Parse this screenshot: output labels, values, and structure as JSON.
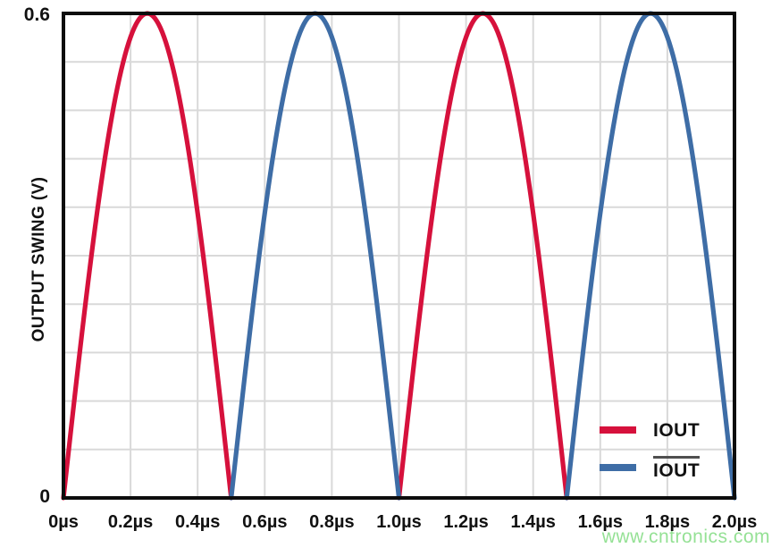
{
  "figure": {
    "watermark": "www.cntronics.com",
    "watermark_color": "#8ade8a",
    "background": "#ffffff"
  },
  "chart_data": {
    "type": "line",
    "title": "",
    "xlabel": "",
    "ylabel": "OUTPUT SWING (V)",
    "x_unit": "µs",
    "xlim": [
      0,
      2.0
    ],
    "ylim": [
      0,
      0.6
    ],
    "x_ticks": [
      0,
      0.2,
      0.4,
      0.6,
      0.8,
      1.0,
      1.2,
      1.4,
      1.6,
      1.8,
      2.0
    ],
    "x_tick_labels": [
      "0µs",
      "0.2µs",
      "0.4µs",
      "0.6µs",
      "0.8µs",
      "1.0µs",
      "1.2µs",
      "1.4µs",
      "1.6µs",
      "1.8µs",
      "2.0µs"
    ],
    "y_ticks": [
      {
        "value": 0.6,
        "label": "0.6"
      },
      {
        "value": 0,
        "label": "0"
      }
    ],
    "grid": {
      "show": true,
      "x_step_us": 0.2,
      "y_divisions": 10,
      "color": "#d9d9d9"
    },
    "waveform": "rectified-sine",
    "amplitude_v": 0.6,
    "hump_width_us": 0.5,
    "series": [
      {
        "name": "IOUT",
        "overline": false,
        "color": "#d6113c",
        "description": "half-sine humps peaking 0.6 V at 0.25 µs and 1.25 µs",
        "humps": [
          [
            0.0,
            0.5
          ],
          [
            1.0,
            1.5
          ]
        ],
        "peaks": [
          {
            "t": 0.25,
            "v": 0.6
          },
          {
            "t": 1.25,
            "v": 0.6
          }
        ]
      },
      {
        "name": "IOUT",
        "overline": true,
        "color": "#3e6da6",
        "description": "half-sine humps peaking 0.6 V at 0.75 µs and 1.75 µs",
        "humps": [
          [
            0.5,
            1.0
          ],
          [
            1.5,
            2.0
          ]
        ],
        "peaks": [
          {
            "t": 0.75,
            "v": 0.6
          },
          {
            "t": 1.75,
            "v": 0.6
          }
        ]
      }
    ],
    "legend": {
      "position": "inside-bottom-right"
    },
    "axis_color": "#0d0d0d"
  }
}
